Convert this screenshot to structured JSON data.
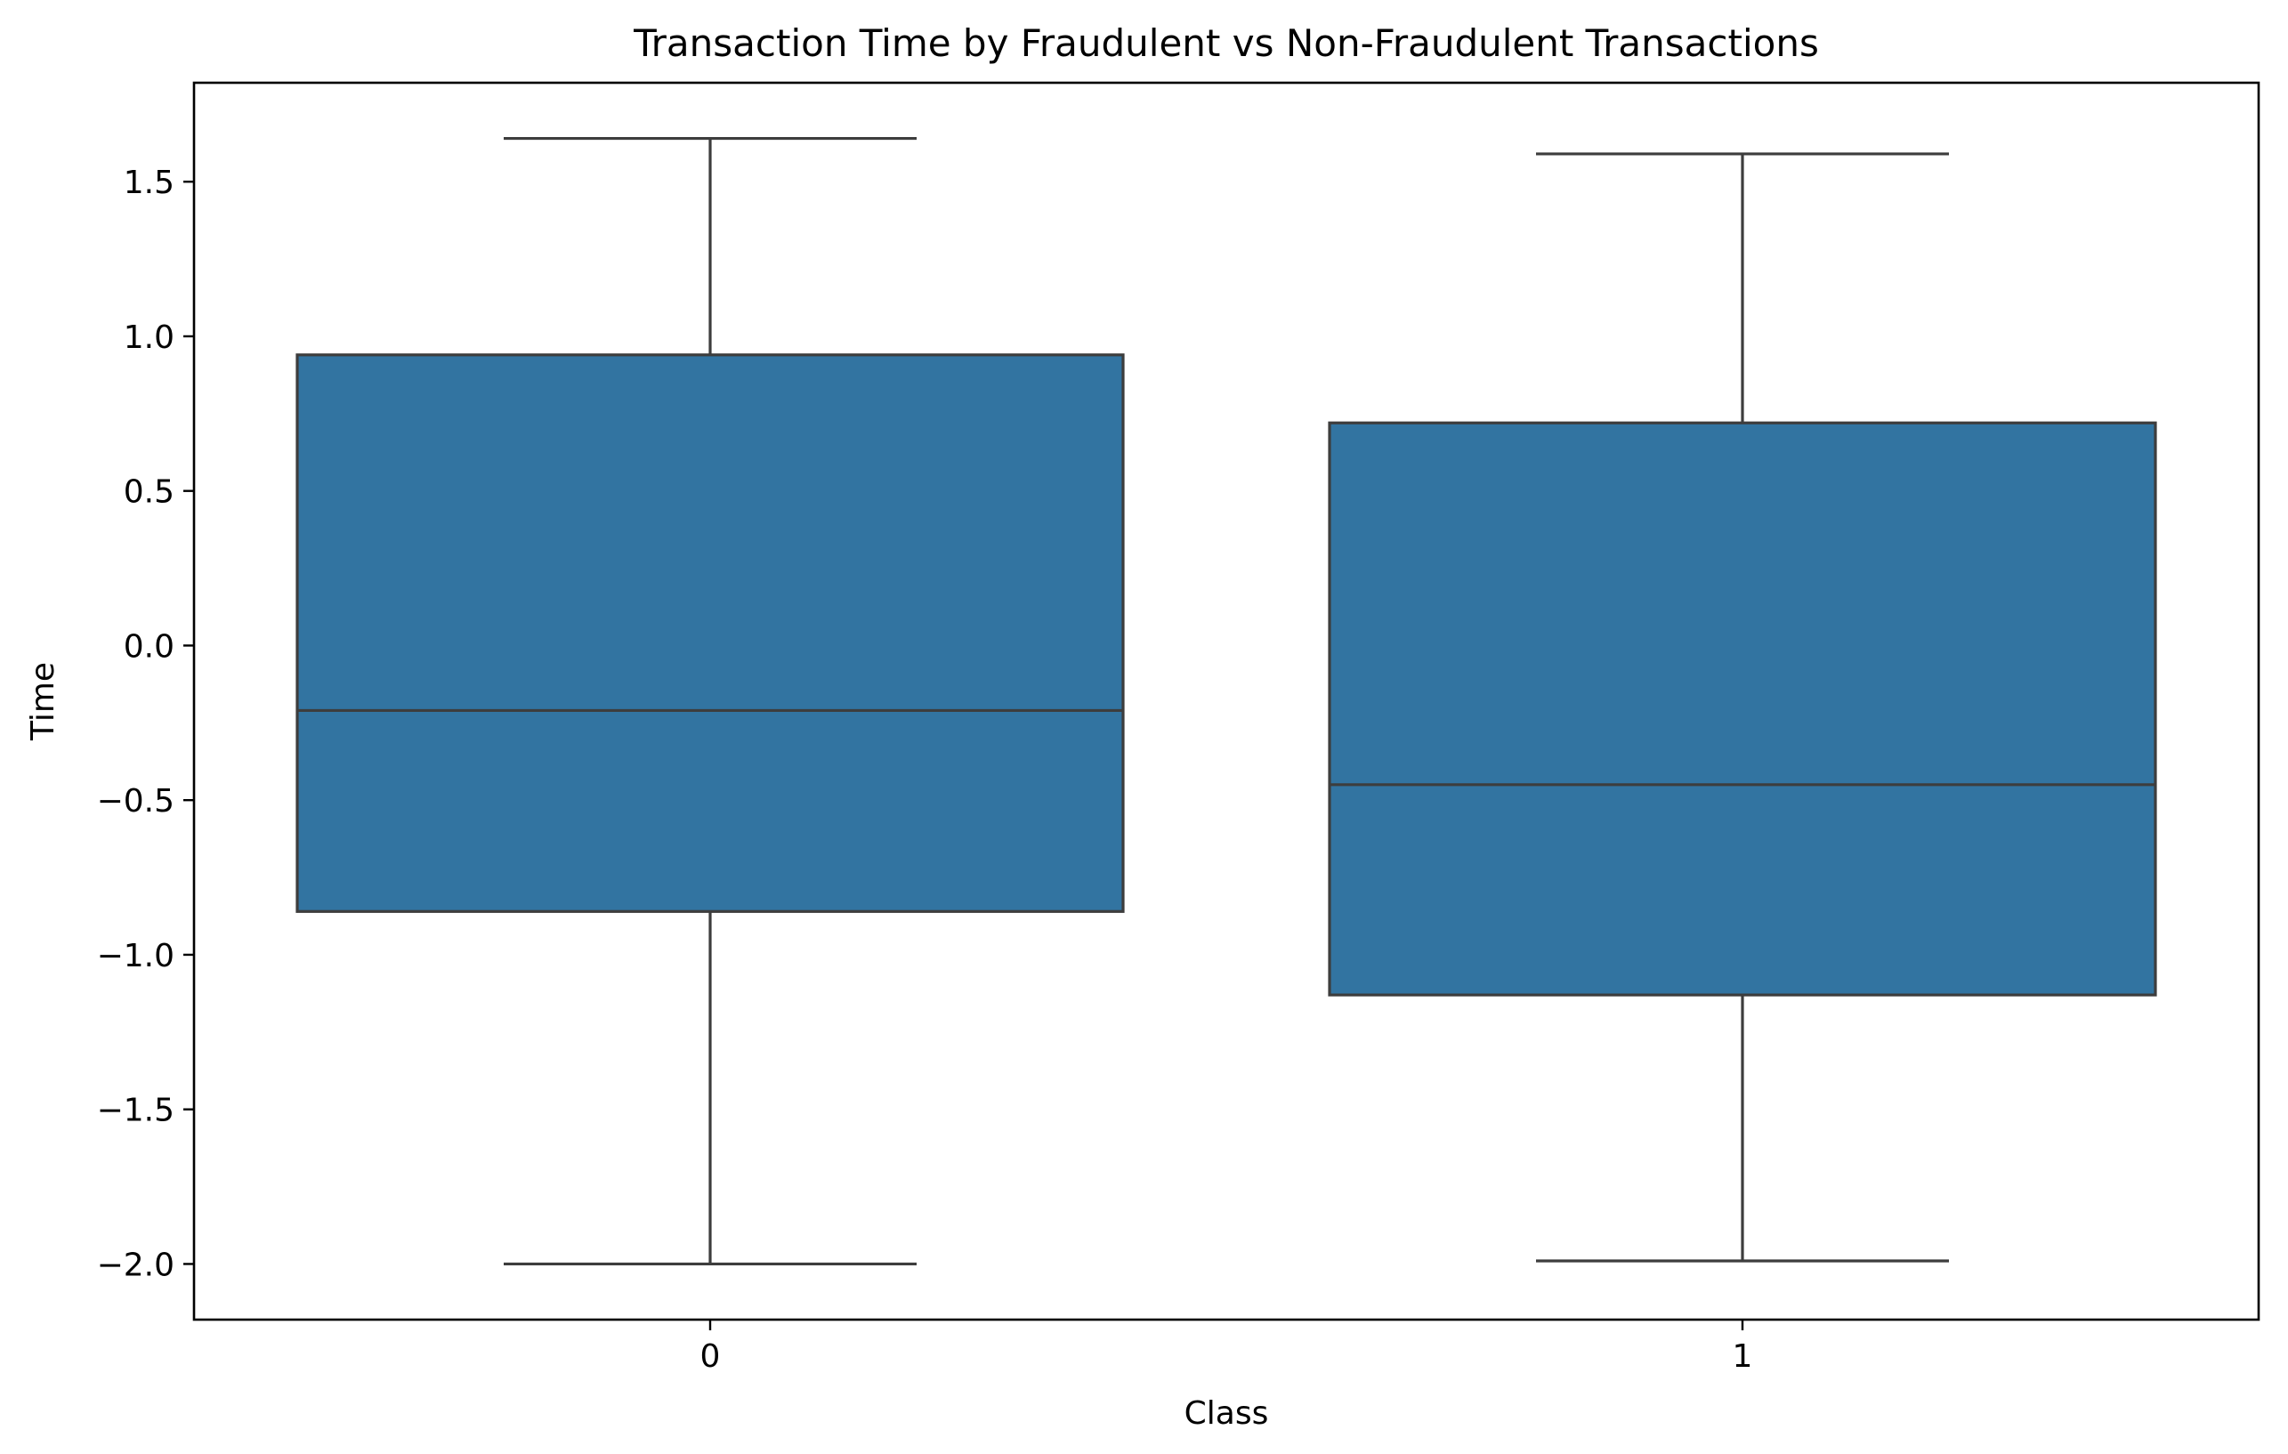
{
  "chart_data": {
    "type": "box",
    "title": "Transaction Time by Fraudulent vs Non-Fraudulent Transactions",
    "xlabel": "Class",
    "ylabel": "Time",
    "categories": [
      "0",
      "1"
    ],
    "ylim": [
      -2.18,
      1.82
    ],
    "y_ticks": [
      -2.0,
      -1.5,
      -1.0,
      -0.5,
      0.0,
      0.5,
      1.0,
      1.5
    ],
    "y_tick_labels": [
      "−2.0",
      "−1.5",
      "−1.0",
      "−0.5",
      "0.0",
      "0.5",
      "1.0",
      "1.5"
    ],
    "grid": false,
    "legend": "none",
    "boxes": [
      {
        "category": "0",
        "whisker_low": -2.0,
        "q1": -0.86,
        "median": -0.21,
        "q3": 0.94,
        "whisker_high": 1.64
      },
      {
        "category": "1",
        "whisker_low": -1.99,
        "q1": -1.13,
        "median": -0.45,
        "q3": 0.72,
        "whisker_high": 1.59
      }
    ],
    "colors": {
      "box_fill": "#3274a1",
      "line": "#3d3d3d",
      "axes": "#000000"
    }
  }
}
